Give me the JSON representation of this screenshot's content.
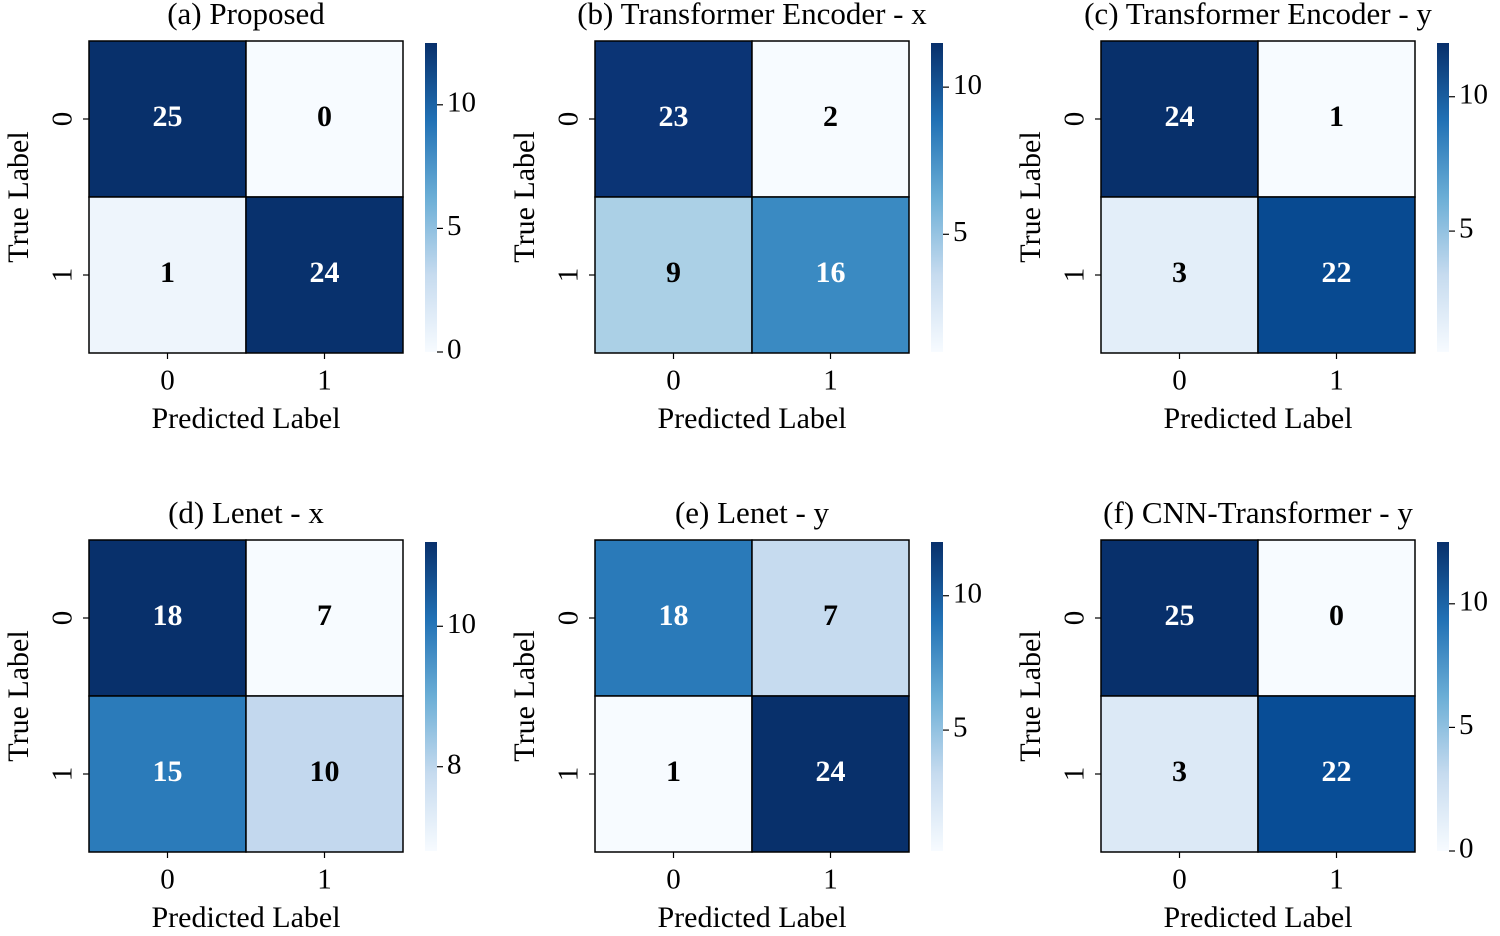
{
  "chart_data": [
    {
      "type": "heatmap",
      "title": "(a) Proposed",
      "x_label": "Predicted Label",
      "y_label": "True Label",
      "x_categories": [
        "0",
        "1"
      ],
      "y_categories": [
        "0",
        "1"
      ],
      "values": [
        [
          25,
          0
        ],
        [
          1,
          24
        ]
      ],
      "cell_colors": [
        [
          "#08306b",
          "#f7fbff"
        ],
        [
          "#eef5fc",
          "#08316d"
        ]
      ],
      "colormap": [
        "#f7fbff",
        "#c6dbef",
        "#6baed6",
        "#2171b5",
        "#08306b"
      ],
      "clim": [
        0,
        12.5
      ],
      "cticks": [
        0,
        5,
        10
      ]
    },
    {
      "type": "heatmap",
      "title": "(b) Transformer Encoder - x",
      "x_label": "Predicted Label",
      "y_label": "True Label",
      "x_categories": [
        "0",
        "1"
      ],
      "y_categories": [
        "0",
        "1"
      ],
      "values": [
        [
          23,
          2
        ],
        [
          9,
          16
        ]
      ],
      "cell_colors": [
        [
          "#0b3475",
          "#f7fbff"
        ],
        [
          "#abd0e6",
          "#3a8ac2"
        ]
      ],
      "colormap": [
        "#f7fbff",
        "#c6dbef",
        "#6baed6",
        "#2171b5",
        "#08306b"
      ],
      "clim": [
        1,
        11.5
      ],
      "cticks": [
        5,
        10
      ]
    },
    {
      "type": "heatmap",
      "title": "(c) Transformer Encoder - y",
      "x_label": "Predicted Label",
      "y_label": "True Label",
      "x_categories": [
        "0",
        "1"
      ],
      "y_categories": [
        "0",
        "1"
      ],
      "values": [
        [
          24,
          1
        ],
        [
          3,
          22
        ]
      ],
      "cell_colors": [
        [
          "#08306b",
          "#f7fbff"
        ],
        [
          "#e3eef9",
          "#084a91"
        ]
      ],
      "colormap": [
        "#f7fbff",
        "#c6dbef",
        "#6baed6",
        "#2171b5",
        "#08306b"
      ],
      "clim": [
        0.5,
        12
      ],
      "cticks": [
        5,
        10
      ]
    },
    {
      "type": "heatmap",
      "title": "(d) Lenet - x",
      "x_label": "Predicted Label",
      "y_label": "True Label",
      "x_categories": [
        "0",
        "1"
      ],
      "y_categories": [
        "0",
        "1"
      ],
      "values": [
        [
          18,
          7
        ],
        [
          15,
          10
        ]
      ],
      "cell_colors": [
        [
          "#08306b",
          "#f7fbff"
        ],
        [
          "#2b7bba",
          "#c3d8ee"
        ]
      ],
      "colormap": [
        "#f7fbff",
        "#c6dbef",
        "#6baed6",
        "#2171b5",
        "#08306b"
      ],
      "clim": [
        6.8,
        11.2
      ],
      "cticks": [
        8,
        10
      ]
    },
    {
      "type": "heatmap",
      "title": "(e) Lenet - y",
      "x_label": "Predicted Label",
      "y_label": "True Label",
      "x_categories": [
        "0",
        "1"
      ],
      "y_categories": [
        "0",
        "1"
      ],
      "values": [
        [
          18,
          7
        ],
        [
          1,
          24
        ]
      ],
      "cell_colors": [
        [
          "#2a7ab9",
          "#c6dbef"
        ],
        [
          "#f7fbff",
          "#08306b"
        ]
      ],
      "colormap": [
        "#f7fbff",
        "#c6dbef",
        "#6baed6",
        "#2171b5",
        "#08306b"
      ],
      "clim": [
        0.5,
        12
      ],
      "cticks": [
        5,
        10
      ]
    },
    {
      "type": "heatmap",
      "title": "(f) CNN-Transformer - y",
      "x_label": "Predicted Label",
      "y_label": "True Label",
      "x_categories": [
        "0",
        "1"
      ],
      "y_categories": [
        "0",
        "1"
      ],
      "values": [
        [
          25,
          0
        ],
        [
          3,
          22
        ]
      ],
      "cell_colors": [
        [
          "#08306b",
          "#f7fbff"
        ],
        [
          "#dce9f6",
          "#084d96"
        ]
      ],
      "colormap": [
        "#f7fbff",
        "#c6dbef",
        "#6baed6",
        "#2171b5",
        "#08306b"
      ],
      "clim": [
        0,
        12.5
      ],
      "cticks": [
        0,
        5,
        10
      ]
    }
  ]
}
